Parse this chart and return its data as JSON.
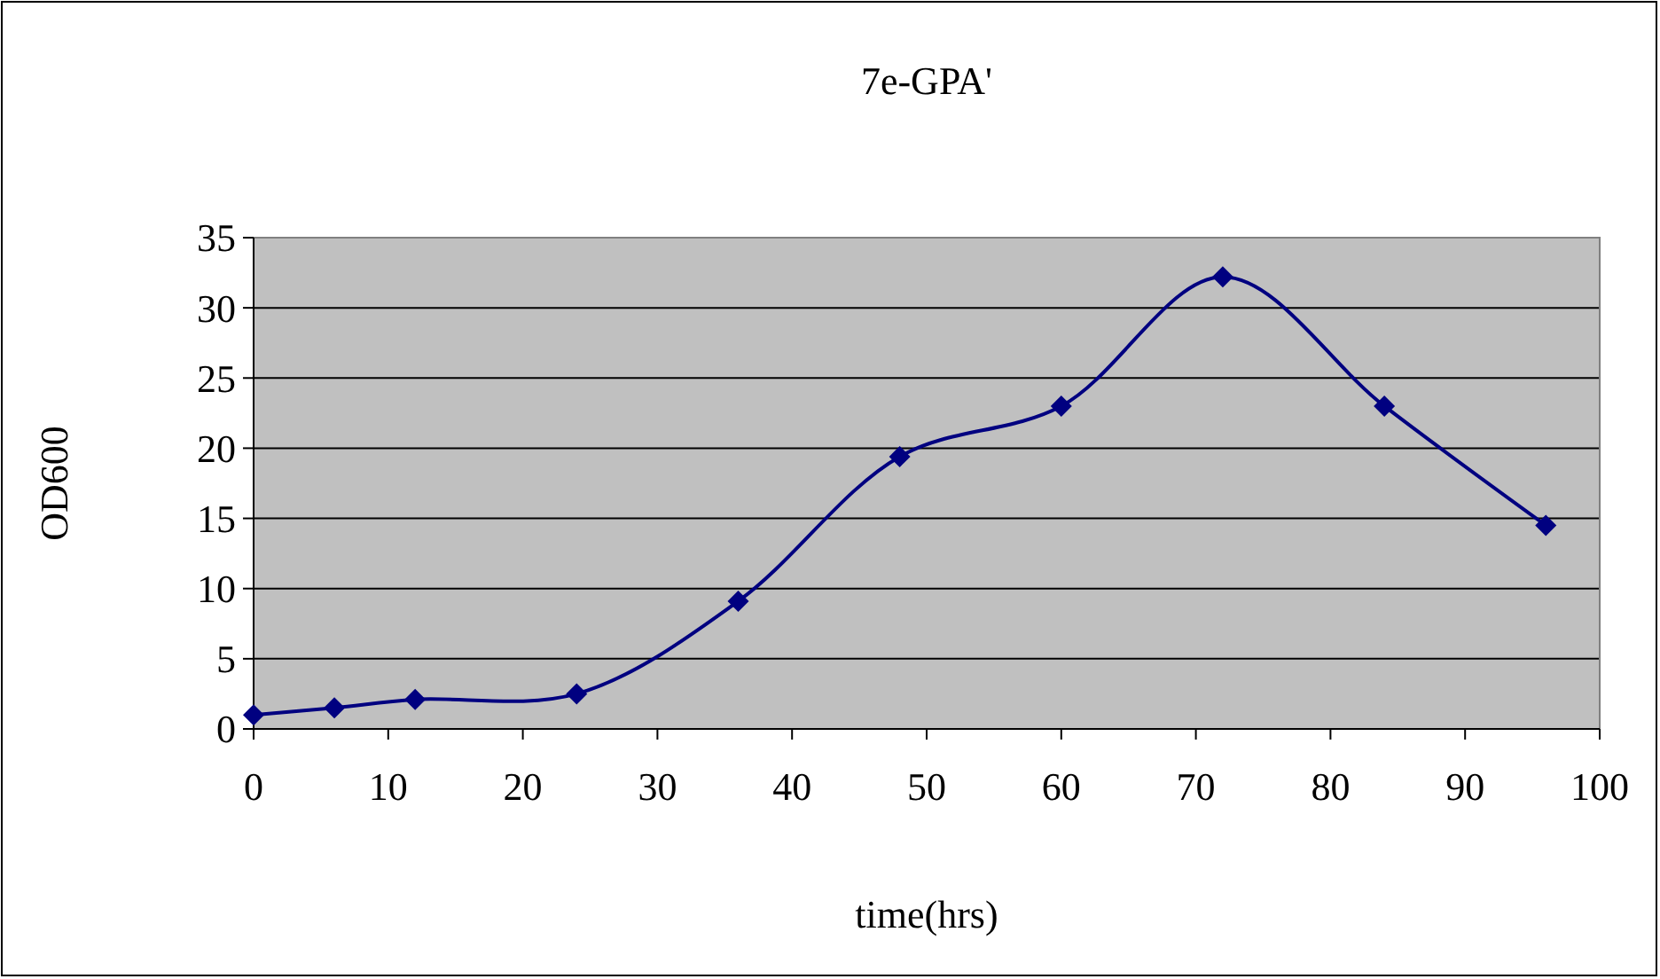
{
  "chart_data": {
    "type": "line",
    "title": "7e-GPA'",
    "xlabel": "time(hrs)",
    "ylabel": "OD600",
    "x": [
      0,
      6,
      12,
      24,
      36,
      48,
      60,
      72,
      84,
      96
    ],
    "series": [
      {
        "color": "#000080",
        "values": [
          1.0,
          1.5,
          2.1,
          2.5,
          9.1,
          19.4,
          23.0,
          32.2,
          23.0,
          14.5
        ]
      }
    ],
    "xlim": [
      0,
      100
    ],
    "xticks": [
      0,
      10,
      20,
      30,
      40,
      50,
      60,
      70,
      80,
      90,
      100
    ],
    "ylim": [
      0,
      35
    ],
    "yticks": [
      0,
      5,
      10,
      15,
      20,
      25,
      30,
      35
    ],
    "grid": "y",
    "marker": "diamond",
    "line_style": "solid"
  }
}
